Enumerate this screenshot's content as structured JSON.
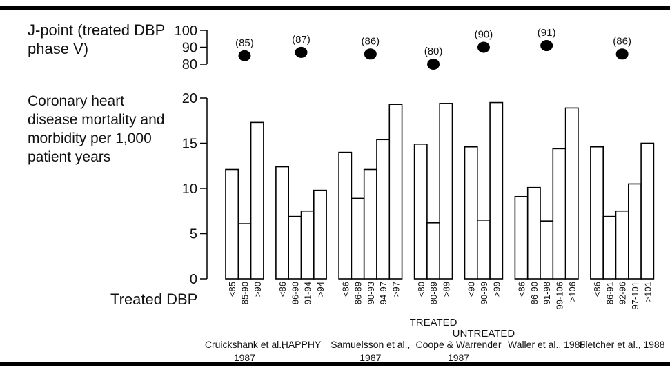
{
  "chart_data": {
    "type": "bar",
    "j_point_title": "J-point (treated DBP phase V)",
    "j_point_ylim": [
      80,
      100
    ],
    "j_point_yticks": [
      80,
      90,
      100
    ],
    "title": "Coronary heart disease mortality and morbidity per 1,000 patient years",
    "xlabel": "Treated DBP",
    "ylim": [
      0,
      20
    ],
    "yticks": [
      0,
      5,
      10,
      15,
      20
    ],
    "color": "#ffffff",
    "groups": [
      {
        "name": "Cruickshank et al., 1987",
        "sections": [
          {
            "j_point": 85,
            "j_point_label": "(85)",
            "categories": [
              "<85",
              "85-90",
              ">90"
            ],
            "values": [
              12.1,
              6.1,
              17.3
            ]
          }
        ]
      },
      {
        "name": "HAPPHY",
        "sections": [
          {
            "j_point": 87,
            "j_point_label": "(87)",
            "categories": [
              "<86",
              "86-90",
              "91-94",
              ">94"
            ],
            "values": [
              12.4,
              6.9,
              7.5,
              9.8
            ]
          }
        ]
      },
      {
        "name": "Samuelsson et al., 1987",
        "sections": [
          {
            "j_point": 86,
            "j_point_label": "(86)",
            "categories": [
              "<86",
              "86-89",
              "90-93",
              "94-97",
              ">97"
            ],
            "values": [
              14.0,
              8.9,
              12.1,
              15.4,
              19.3
            ]
          }
        ]
      },
      {
        "name": "Coope & Warrender 1987",
        "sections": [
          {
            "name": "TREATED",
            "j_point": 80,
            "j_point_label": "(80)",
            "categories": [
              "<80",
              "80-89",
              ">89"
            ],
            "values": [
              14.9,
              6.2,
              19.4
            ]
          },
          {
            "name": "UNTREATED",
            "j_point": 90,
            "j_point_label": "(90)",
            "categories": [
              "<90",
              "90-99",
              ">99"
            ],
            "values": [
              14.6,
              6.5,
              19.5
            ]
          }
        ]
      },
      {
        "name": "Waller et al., 1988",
        "sections": [
          {
            "j_point": 91,
            "j_point_label": "(91)",
            "categories": [
              "<86",
              "86-90",
              "91-98",
              "99-106",
              ">106"
            ],
            "values": [
              9.1,
              10.1,
              6.4,
              14.4,
              18.9
            ]
          }
        ]
      },
      {
        "name": "Fletcher et al., 1988",
        "sections": [
          {
            "j_point": 86,
            "j_point_label": "(86)",
            "categories": [
              "<86",
              "86-91",
              "92-96",
              "97-101",
              ">101"
            ],
            "values": [
              14.6,
              6.9,
              7.5,
              10.5,
              15.0
            ]
          }
        ]
      }
    ]
  }
}
